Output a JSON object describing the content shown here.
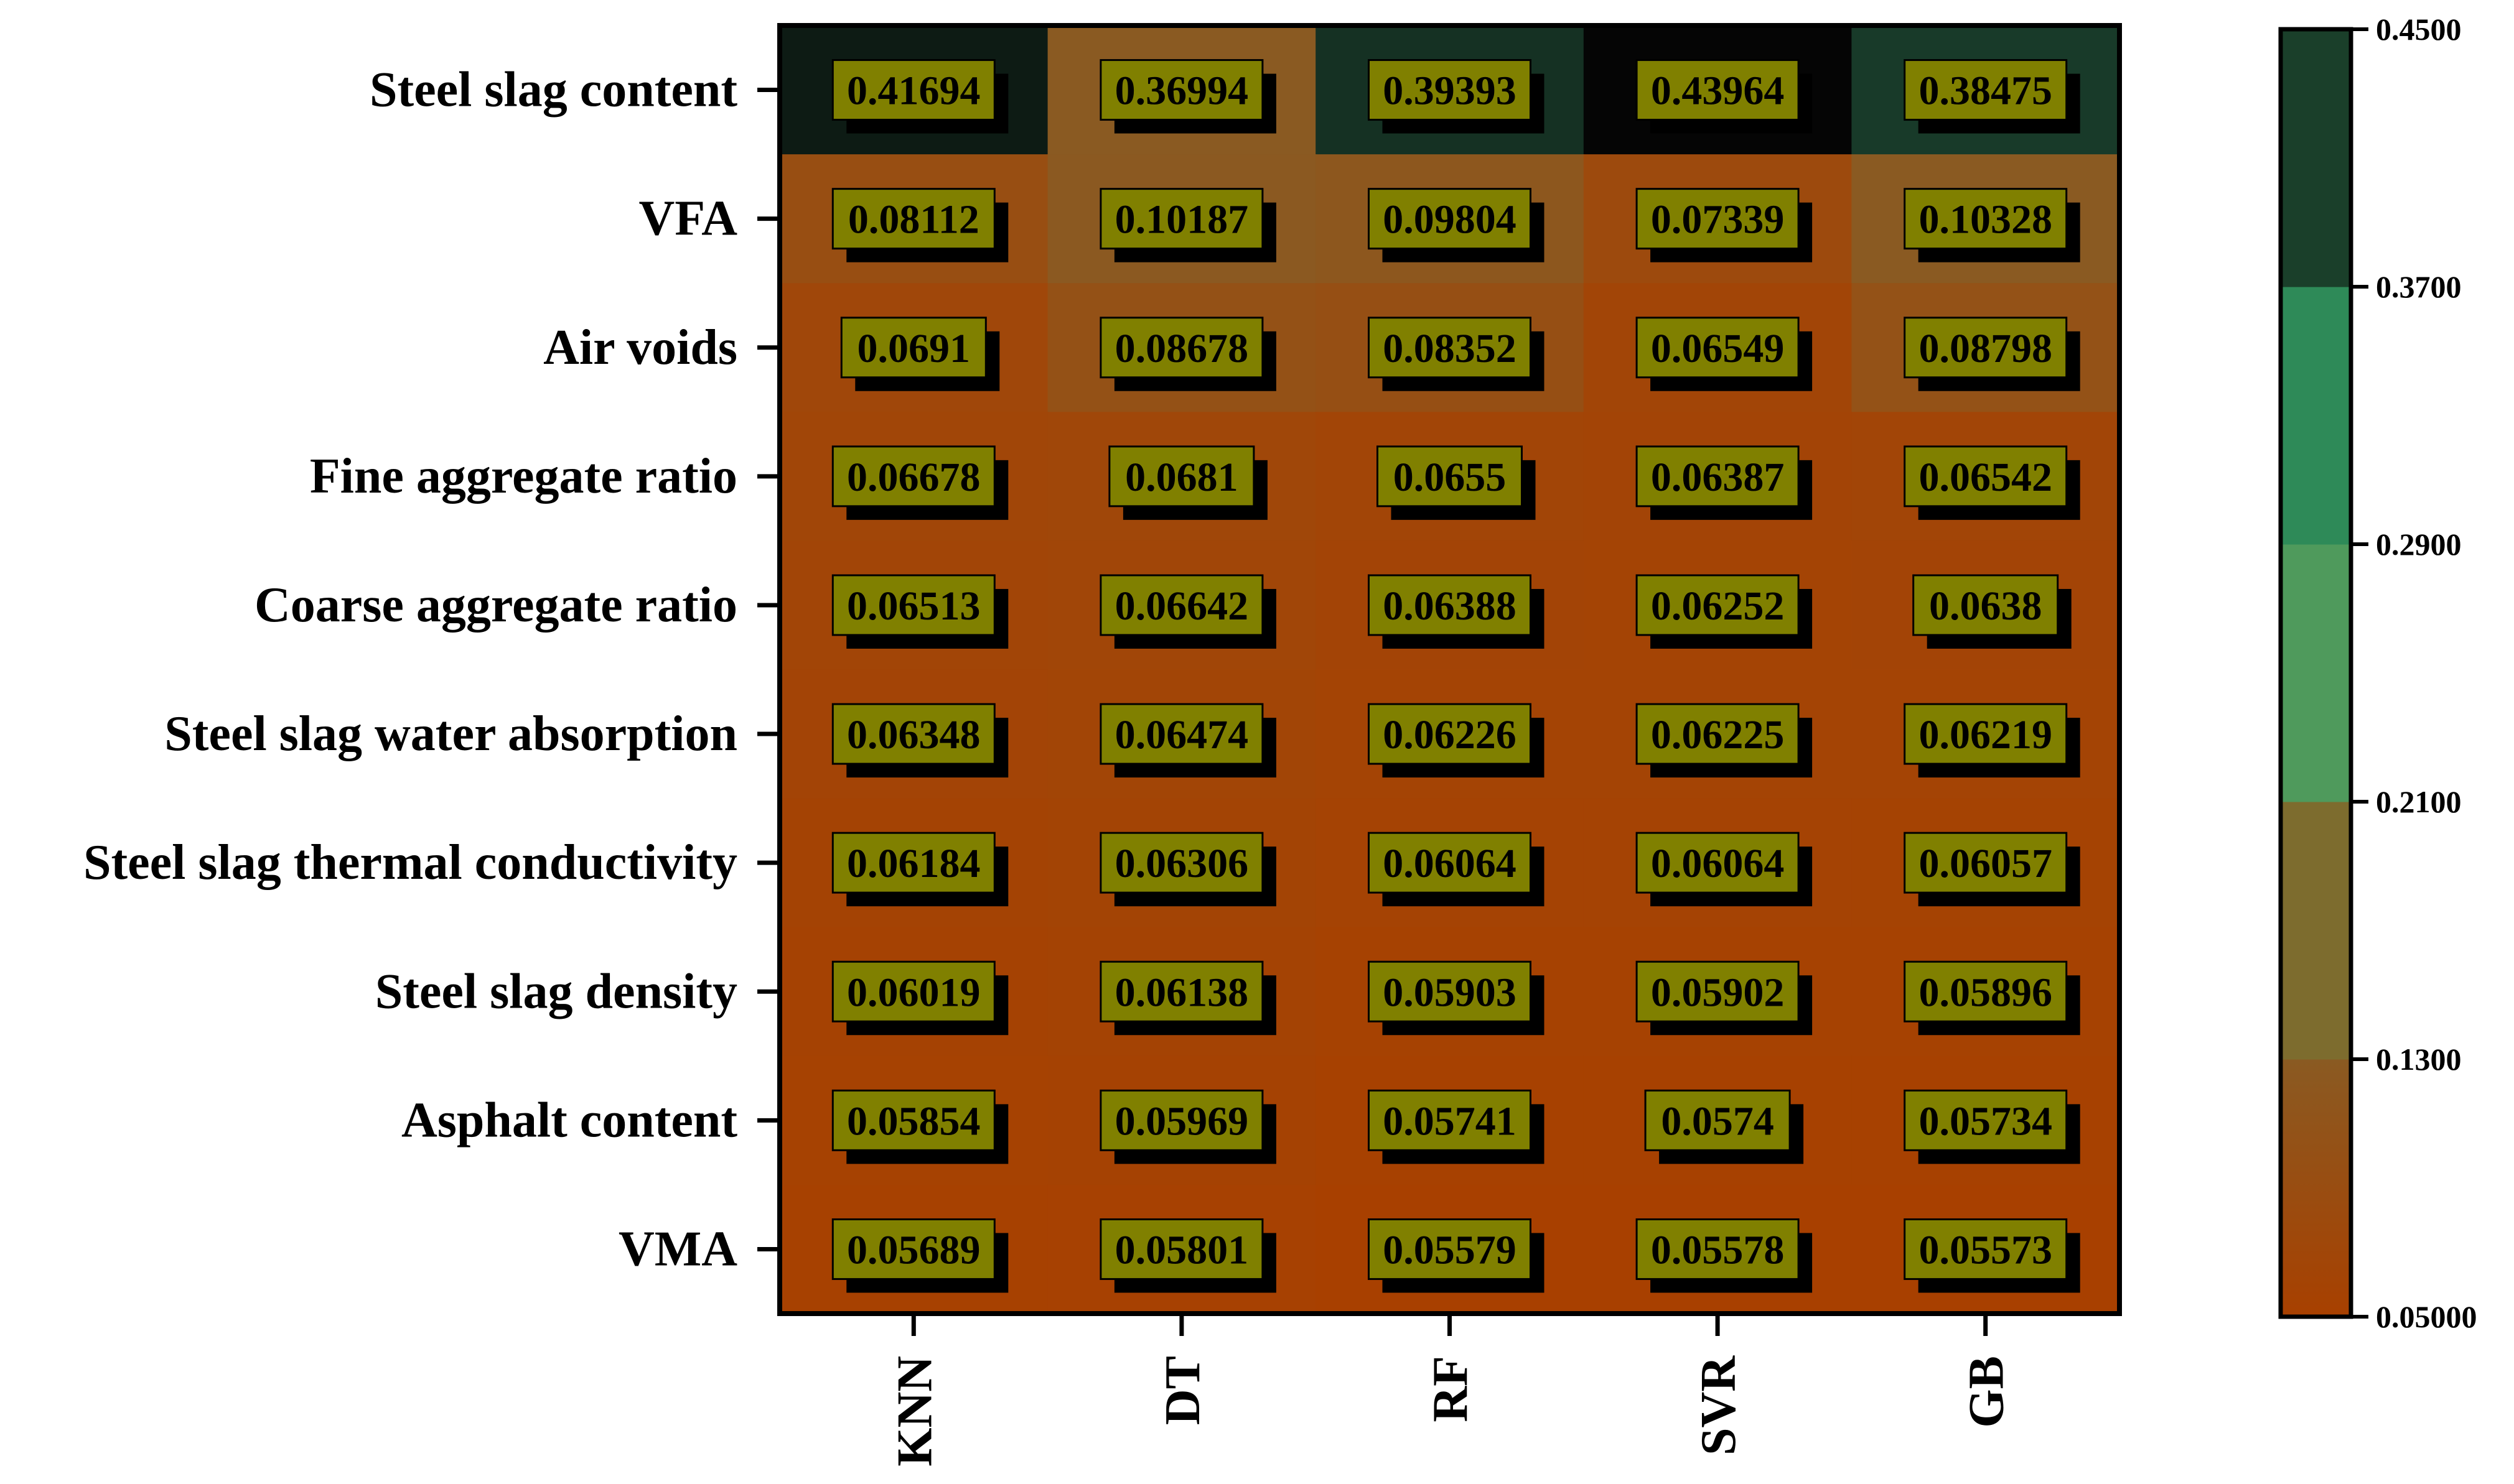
{
  "chart_data": {
    "type": "heatmap",
    "title": "",
    "xlabel": "",
    "ylabel": "",
    "rows": [
      "Steel slag content",
      "VFA",
      "Air voids",
      "Fine aggregate ratio",
      "Coarse aggregate ratio",
      "Steel slag water absorption",
      "Steel slag thermal conductivity",
      "Steel slag density",
      "Asphalt content",
      "VMA"
    ],
    "columns": [
      "KNN",
      "DT",
      "RF",
      "SVR",
      "GB"
    ],
    "values": [
      [
        0.41694,
        0.36994,
        0.39393,
        0.43964,
        0.38475
      ],
      [
        0.08112,
        0.10187,
        0.09804,
        0.07339,
        0.10328
      ],
      [
        0.0691,
        0.08678,
        0.08352,
        0.06549,
        0.08798
      ],
      [
        0.06678,
        0.0681,
        0.0655,
        0.06387,
        0.06542
      ],
      [
        0.06513,
        0.06642,
        0.06388,
        0.06252,
        0.0638
      ],
      [
        0.06348,
        0.06474,
        0.06226,
        0.06225,
        0.06219
      ],
      [
        0.06184,
        0.06306,
        0.06064,
        0.06064,
        0.06057
      ],
      [
        0.06019,
        0.06138,
        0.05903,
        0.05902,
        0.05896
      ],
      [
        0.05854,
        0.05969,
        0.05741,
        0.0574,
        0.05734
      ],
      [
        0.05689,
        0.05801,
        0.05579,
        0.05578,
        0.05573
      ]
    ],
    "value_labels": [
      [
        "0.41694",
        "0.36994",
        "0.39393",
        "0.43964",
        "0.38475"
      ],
      [
        "0.08112",
        "0.10187",
        "0.09804",
        "0.07339",
        "0.10328"
      ],
      [
        "0.0691",
        "0.08678",
        "0.08352",
        "0.06549",
        "0.08798"
      ],
      [
        "0.06678",
        "0.0681",
        "0.0655",
        "0.06387",
        "0.06542"
      ],
      [
        "0.06513",
        "0.06642",
        "0.06388",
        "0.06252",
        "0.0638"
      ],
      [
        "0.06348",
        "0.06474",
        "0.06226",
        "0.06225",
        "0.06219"
      ],
      [
        "0.06184",
        "0.06306",
        "0.06064",
        "0.06064",
        "0.06057"
      ],
      [
        "0.06019",
        "0.06138",
        "0.05903",
        "0.05902",
        "0.05896"
      ],
      [
        "0.05854",
        "0.05969",
        "0.05741",
        "0.0574",
        "0.05734"
      ],
      [
        "0.05689",
        "0.05801",
        "0.05579",
        "0.05578",
        "0.05573"
      ]
    ],
    "colorbar": {
      "range": [
        0.05,
        0.45
      ],
      "ticks": [
        "0.05000",
        "0.1300",
        "0.2100",
        "0.2900",
        "0.3700",
        "0.4500"
      ],
      "bands": [
        {
          "from": 0.05,
          "to": 0.13,
          "color_low": "#a84000",
          "color_high": "#8a5a22"
        },
        {
          "from": 0.13,
          "to": 0.21,
          "color_low": "#7d6c2e",
          "color_high": "#7d6c2e"
        },
        {
          "from": 0.21,
          "to": 0.29,
          "color_low": "#4f9a5c",
          "color_high": "#4f9a5c"
        },
        {
          "from": 0.29,
          "to": 0.37,
          "color_low": "#2e8a58",
          "color_high": "#2e8a58"
        },
        {
          "from": 0.37,
          "to": 0.45,
          "color_low": "#1a3f2a",
          "color_high": "#1a3f2a"
        }
      ]
    },
    "label_box_color": "#808000",
    "grid": false,
    "legend": "right"
  }
}
